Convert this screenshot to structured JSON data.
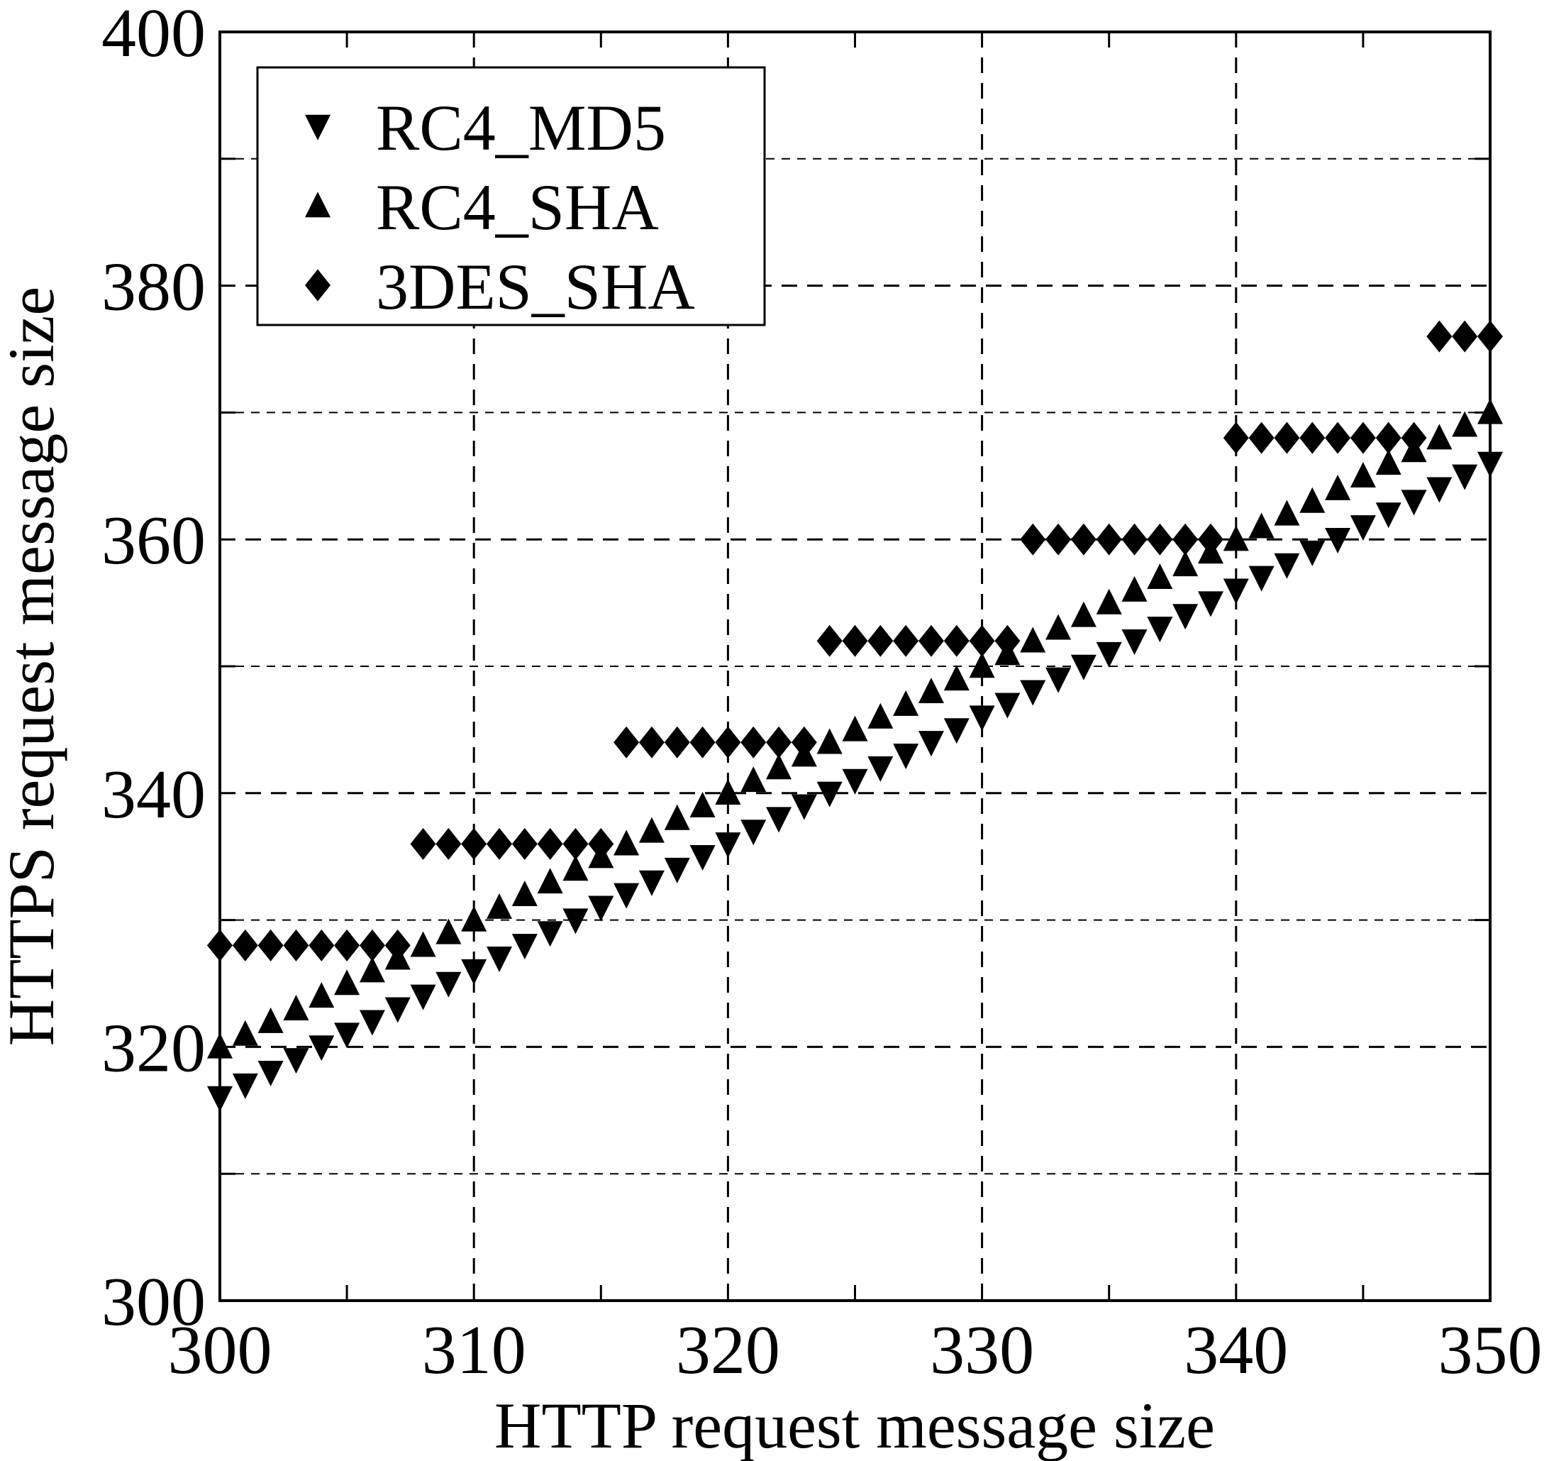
{
  "chart_data": {
    "type": "scatter",
    "title": "",
    "xlabel": "HTTP request  message size",
    "ylabel": "HTTPS  request message size",
    "xlim": [
      300,
      350
    ],
    "ylim": [
      300,
      400
    ],
    "xticks": [
      "300",
      "310",
      "320",
      "330",
      "340",
      "350"
    ],
    "yticks": [
      "300",
      "320",
      "340",
      "360",
      "380",
      "400"
    ],
    "grid": true,
    "legend_position": "top-left",
    "x": [
      300,
      301,
      302,
      303,
      304,
      305,
      306,
      307,
      308,
      309,
      310,
      311,
      312,
      313,
      314,
      315,
      316,
      317,
      318,
      319,
      320,
      321,
      322,
      323,
      324,
      325,
      326,
      327,
      328,
      329,
      330,
      331,
      332,
      333,
      334,
      335,
      336,
      337,
      338,
      339,
      340,
      341,
      342,
      343,
      344,
      345,
      346,
      347,
      348,
      349,
      350
    ],
    "series": [
      {
        "name": "RC4_MD5",
        "marker": "triangle-down",
        "values": [
          316,
          317,
          318,
          319,
          320,
          321,
          322,
          323,
          324,
          325,
          326,
          327,
          328,
          329,
          330,
          331,
          332,
          333,
          334,
          335,
          336,
          337,
          338,
          339,
          340,
          341,
          342,
          343,
          344,
          345,
          346,
          347,
          348,
          349,
          350,
          351,
          352,
          353,
          354,
          355,
          356,
          357,
          358,
          359,
          360,
          361,
          362,
          363,
          364,
          365,
          366
        ]
      },
      {
        "name": "RC4_SHA",
        "marker": "triangle-up",
        "values": [
          320,
          321,
          322,
          323,
          324,
          325,
          326,
          327,
          328,
          329,
          330,
          331,
          332,
          333,
          334,
          335,
          336,
          337,
          338,
          339,
          340,
          341,
          342,
          343,
          344,
          345,
          346,
          347,
          348,
          349,
          350,
          351,
          352,
          353,
          354,
          355,
          356,
          357,
          358,
          359,
          360,
          361,
          362,
          363,
          364,
          365,
          366,
          367,
          368,
          369,
          370
        ]
      },
      {
        "name": "3DES_SHA",
        "marker": "diamond",
        "values": [
          328,
          328,
          328,
          328,
          328,
          328,
          328,
          328,
          336,
          336,
          336,
          336,
          336,
          336,
          336,
          336,
          344,
          344,
          344,
          344,
          344,
          344,
          344,
          344,
          352,
          352,
          352,
          352,
          352,
          352,
          352,
          352,
          360,
          360,
          360,
          360,
          360,
          360,
          360,
          360,
          368,
          368,
          368,
          368,
          368,
          368,
          368,
          368,
          376,
          376,
          376
        ]
      }
    ]
  }
}
